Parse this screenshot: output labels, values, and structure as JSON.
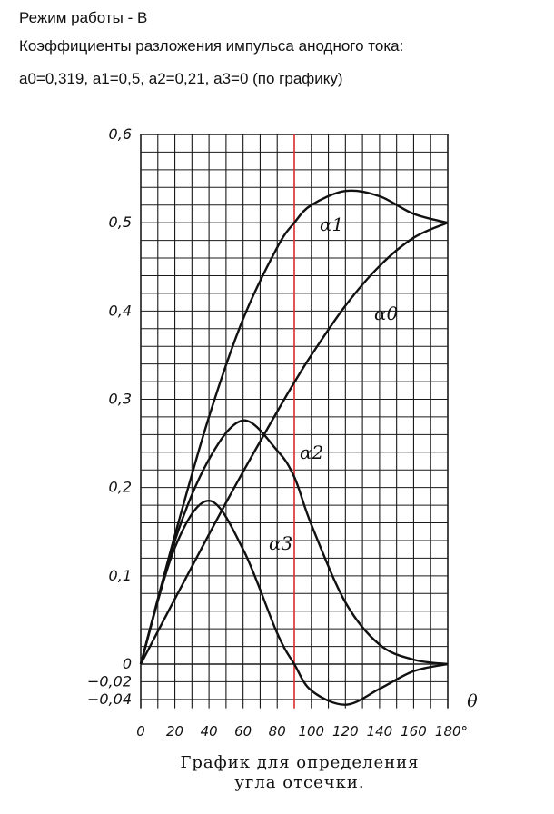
{
  "header": {
    "line1": "Режим работы - В",
    "line2": "Коэффициенты разложения импульса анодного тока:",
    "line3": "а0=0,319, а1=0,5, а2=0,21, а3=0 (по графику)"
  },
  "caption": {
    "line1": "График для определения",
    "line2": "угла отсечки."
  },
  "chart_data": {
    "type": "line",
    "xlabel": "θ",
    "ylabel": "",
    "xlim": [
      0,
      180
    ],
    "ylim": [
      -0.05,
      0.6
    ],
    "grid": true,
    "x_ticks": [
      "0",
      "20",
      "40",
      "60",
      "80",
      "100",
      "120",
      "140",
      "160",
      "180°"
    ],
    "y_ticks": [
      {
        "v": 0.6,
        "label": "0,6"
      },
      {
        "v": 0.5,
        "label": "0,5"
      },
      {
        "v": 0.4,
        "label": "0,4"
      },
      {
        "v": 0.3,
        "label": "0,3"
      },
      {
        "v": 0.2,
        "label": "0,2"
      },
      {
        "v": 0.1,
        "label": "0,1"
      },
      {
        "v": 0,
        "label": "0"
      },
      {
        "v": -0.02,
        "label": "−0,02"
      },
      {
        "v": -0.04,
        "label": "−0,04"
      }
    ],
    "marker_line": {
      "x": 90,
      "color": "#e03030"
    },
    "series": [
      {
        "name": "α0",
        "sub": "0",
        "x": [
          0,
          20,
          40,
          60,
          80,
          90,
          100,
          120,
          140,
          160,
          180
        ],
        "values": [
          0,
          0.074,
          0.147,
          0.218,
          0.286,
          0.319,
          0.35,
          0.406,
          0.451,
          0.483,
          0.5
        ]
      },
      {
        "name": "α1",
        "sub": "1",
        "x": [
          0,
          20,
          40,
          60,
          80,
          90,
          100,
          120,
          140,
          160,
          180
        ],
        "values": [
          0,
          0.146,
          0.28,
          0.391,
          0.472,
          0.5,
          0.52,
          0.536,
          0.53,
          0.51,
          0.5
        ]
      },
      {
        "name": "α2",
        "sub": "2",
        "x": [
          0,
          20,
          40,
          60,
          80,
          90,
          100,
          120,
          140,
          160,
          180
        ],
        "values": [
          0,
          0.14,
          0.232,
          0.276,
          0.242,
          0.212,
          0.158,
          0.07,
          0.022,
          0.005,
          0
        ]
      },
      {
        "name": "α3",
        "sub": "3",
        "x": [
          0,
          20,
          40,
          60,
          80,
          90,
          100,
          120,
          140,
          160,
          180
        ],
        "values": [
          0,
          0.132,
          0.185,
          0.13,
          0.035,
          0.0,
          -0.03,
          -0.046,
          -0.028,
          -0.008,
          0
        ]
      }
    ],
    "colors": {
      "grid": "#1a1a1a",
      "curves": "#111111",
      "marker": "#e03030"
    }
  }
}
